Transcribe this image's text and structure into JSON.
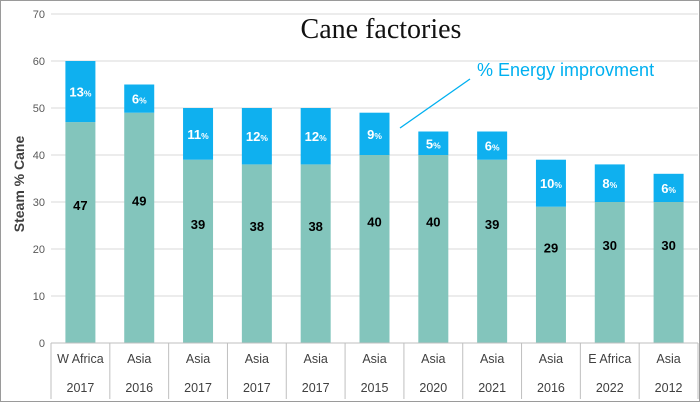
{
  "chart_data": {
    "type": "bar",
    "stacked": true,
    "title": "Cane factories",
    "ylabel": "Steam % Cane",
    "ylim": [
      0,
      70
    ],
    "yticks": [
      0,
      10,
      20,
      30,
      40,
      50,
      60,
      70
    ],
    "categories": [
      "W Africa",
      "Asia",
      "Asia",
      "Asia",
      "Asia",
      "Asia",
      "Asia",
      "Asia",
      "Asia",
      "E Africa",
      "Asia"
    ],
    "years": [
      "2017",
      "2016",
      "2017",
      "2017",
      "2017",
      "2015",
      "2020",
      "2021",
      "2016",
      "2022",
      "2012"
    ],
    "series": [
      {
        "values": [
          47,
          49,
          39,
          38,
          38,
          40,
          40,
          39,
          29,
          30,
          30
        ],
        "color": "#83c5bc"
      },
      {
        "name": "% Energy improvment",
        "values": [
          13,
          6,
          11,
          12,
          12,
          9,
          5,
          6,
          10,
          8,
          6
        ],
        "color": "#0fb0ef"
      }
    ],
    "percent_sign": "%",
    "annotation": {
      "text": "% Energy improvment",
      "points_to_index": 5
    },
    "grid": true,
    "gridline_color": "#d9d9d9"
  }
}
